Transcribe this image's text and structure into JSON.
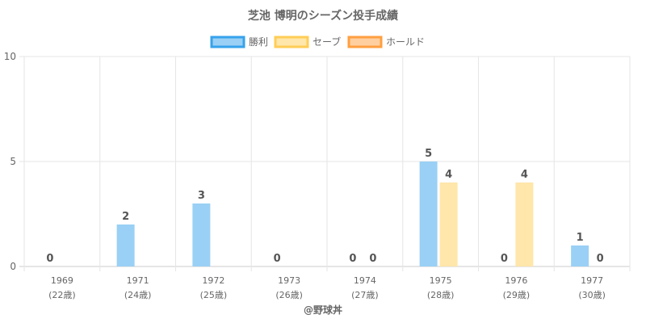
{
  "chart_data": {
    "type": "bar",
    "title": "芝池 博明のシーズン投手成績",
    "categories": [
      "1969",
      "1971",
      "1972",
      "1973",
      "1974",
      "1975",
      "1976",
      "1977"
    ],
    "category_sublabels": [
      "(22歳)",
      "(24歳)",
      "(25歳)",
      "(26歳)",
      "(27歳)",
      "(28歳)",
      "(29歳)",
      "(30歳)"
    ],
    "series": [
      {
        "name": "勝利",
        "values": [
          0,
          2,
          3,
          0,
          0,
          5,
          0,
          1
        ],
        "color": "#9ad0f5",
        "border": "#36a2eb"
      },
      {
        "name": "セーブ",
        "values": [
          null,
          null,
          null,
          null,
          0,
          4,
          4,
          0
        ],
        "color": "#ffe6aa",
        "border": "#ffcd56"
      },
      {
        "name": "ホールド",
        "values": [
          null,
          null,
          null,
          null,
          null,
          null,
          null,
          null
        ],
        "color": "#ffcf9f",
        "border": "#ff9f40"
      }
    ],
    "ylim": [
      0,
      10
    ],
    "yticks": [
      0,
      5,
      10
    ],
    "grid": true,
    "legend": "top",
    "credit": "@野球丼"
  }
}
